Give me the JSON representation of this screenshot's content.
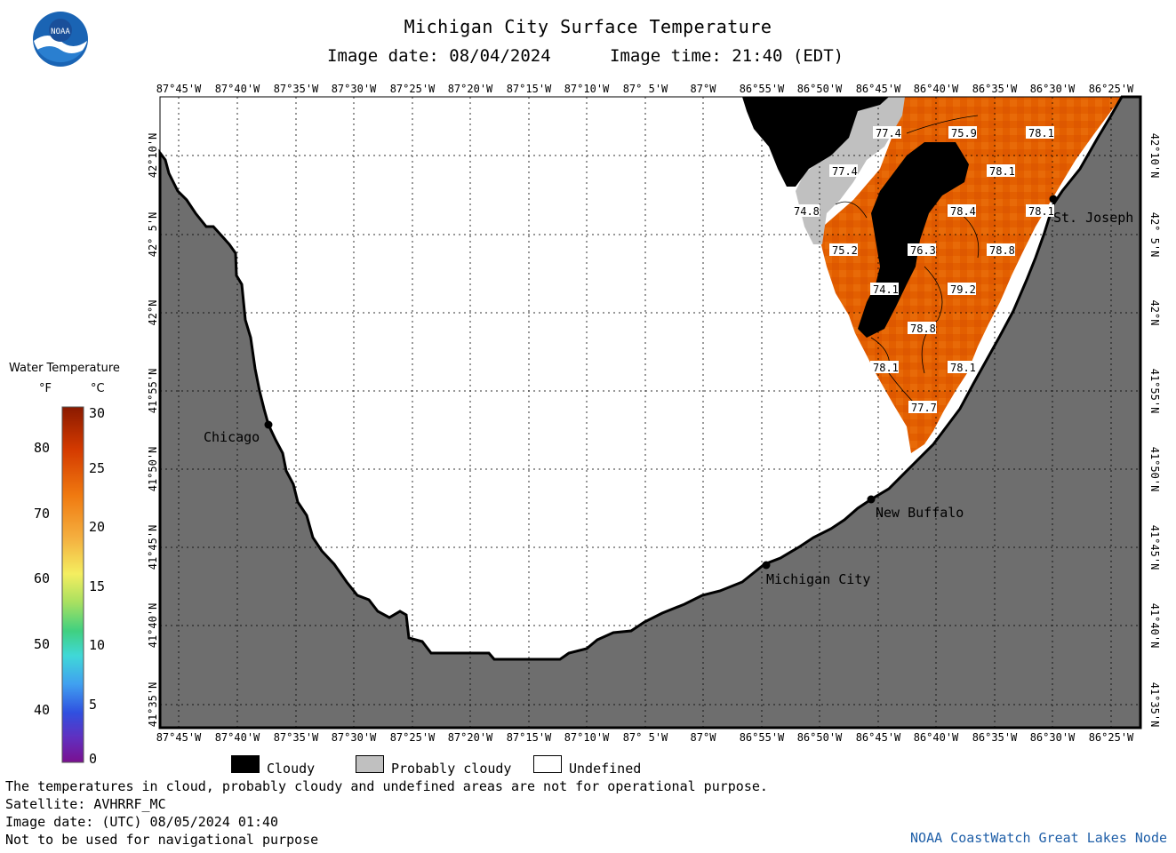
{
  "header": {
    "title": "Michigan City Surface Temperature",
    "image_date": "Image date: 08/04/2024",
    "image_time": "Image time: 21:40 (EDT)"
  },
  "logo": {
    "text": "NOAA"
  },
  "map": {
    "lon_labels": [
      "87°45'W",
      "87°40'W",
      "87°35'W",
      "87°30'W",
      "87°25'W",
      "87°20'W",
      "87°15'W",
      "87°10'W",
      "87° 5'W",
      "87°W",
      "86°55'W",
      "86°50'W",
      "86°45'W",
      "86°40'W",
      "86°35'W",
      "86°30'W",
      "86°25'W"
    ],
    "lat_labels": [
      "42°10'N",
      "42° 5'N",
      "42°N",
      "41°55'N",
      "41°50'N",
      "41°45'N",
      "41°40'N",
      "41°35'N"
    ],
    "cities": [
      {
        "name": "Chicago"
      },
      {
        "name": "St. Joseph"
      },
      {
        "name": "New Buffalo"
      },
      {
        "name": "Michigan City"
      }
    ],
    "temperature_labels": [
      "77.4",
      "75.9",
      "78.1",
      "77.4",
      "78.1",
      "74.8",
      "78.4",
      "78.1",
      "75.2",
      "76.3",
      "78.8",
      "74.1",
      "79.2",
      "78.8",
      "78.1",
      "78.1",
      "77.7"
    ],
    "colors": {
      "land": "#6e6e6e",
      "undefined": "#ffffff",
      "cloudy": "#000000",
      "probably_cloudy": "#c0c0c0",
      "warm_water": "#e65c00"
    }
  },
  "colorbar": {
    "title": "Water Temperature",
    "unit_f": "°F",
    "unit_c": "°C",
    "f_ticks": [
      "80",
      "70",
      "60",
      "50",
      "40"
    ],
    "c_ticks": [
      "30",
      "25",
      "20",
      "15",
      "10",
      "5",
      "0"
    ]
  },
  "legend": {
    "cloudy": "Cloudy",
    "probably_cloudy": "Probably cloudy",
    "undefined": "Undefined"
  },
  "footer": {
    "line1": "The temperatures in cloud, probably cloudy and undefined areas are not for operational purpose.",
    "line2": "Satellite: AVHRRF_MC",
    "line3": "Image date: (UTC) 08/05/2024  01:40",
    "line4": "Not to be used for navigational purpose",
    "credit": "NOAA CoastWatch Great Lakes Node"
  }
}
